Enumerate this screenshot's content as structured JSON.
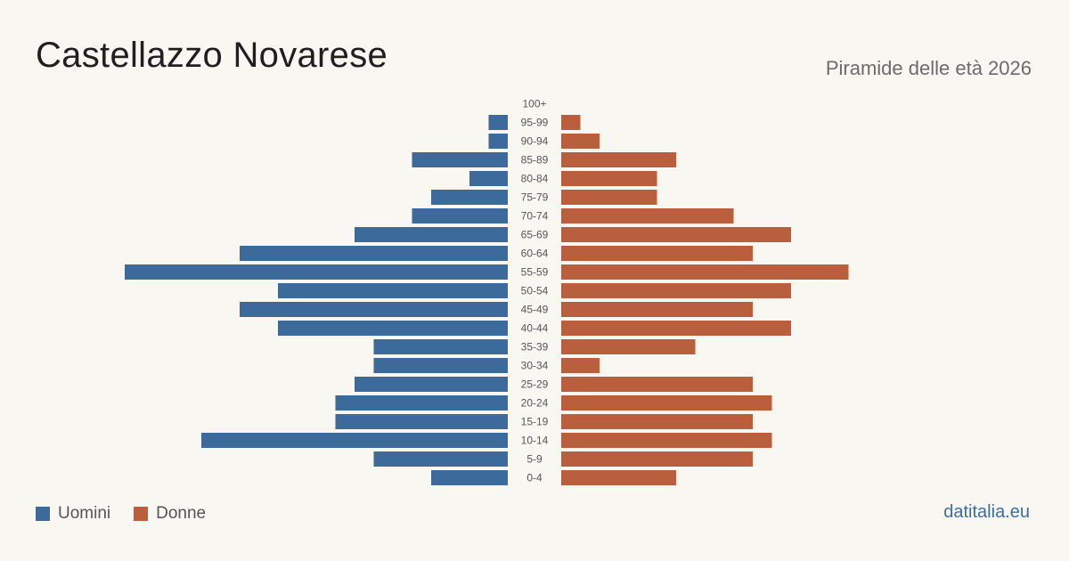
{
  "header": {
    "title": "Castellazzo Novarese",
    "subtitle": "Piramide delle età 2026"
  },
  "legend": {
    "men_label": "Uomini",
    "women_label": "Donne"
  },
  "source": "datitalia.eu",
  "colors": {
    "men": "#3b6a9b",
    "women": "#b95f3e",
    "background": "#f9f7f2"
  },
  "chart_data": {
    "type": "bar",
    "orientation": "horizontal-pyramid",
    "categories": [
      "100+",
      "95-99",
      "90-94",
      "85-89",
      "80-84",
      "75-79",
      "70-74",
      "65-69",
      "60-64",
      "55-59",
      "50-54",
      "45-49",
      "40-44",
      "35-39",
      "30-34",
      "25-29",
      "20-24",
      "15-19",
      "10-14",
      "5-9",
      "0-4"
    ],
    "series": [
      {
        "name": "Uomini",
        "values": [
          0,
          1,
          1,
          5,
          2,
          4,
          5,
          8,
          14,
          20,
          12,
          14,
          12,
          7,
          7,
          8,
          9,
          9,
          16,
          7,
          4
        ]
      },
      {
        "name": "Donne",
        "values": [
          0,
          1,
          2,
          6,
          5,
          5,
          9,
          12,
          10,
          15,
          12,
          10,
          12,
          7,
          2,
          10,
          11,
          10,
          11,
          10,
          6
        ]
      }
    ],
    "title": "Castellazzo Novarese",
    "subtitle": "Piramide delle età 2026",
    "grid": false,
    "legend_position": "bottom-left"
  }
}
